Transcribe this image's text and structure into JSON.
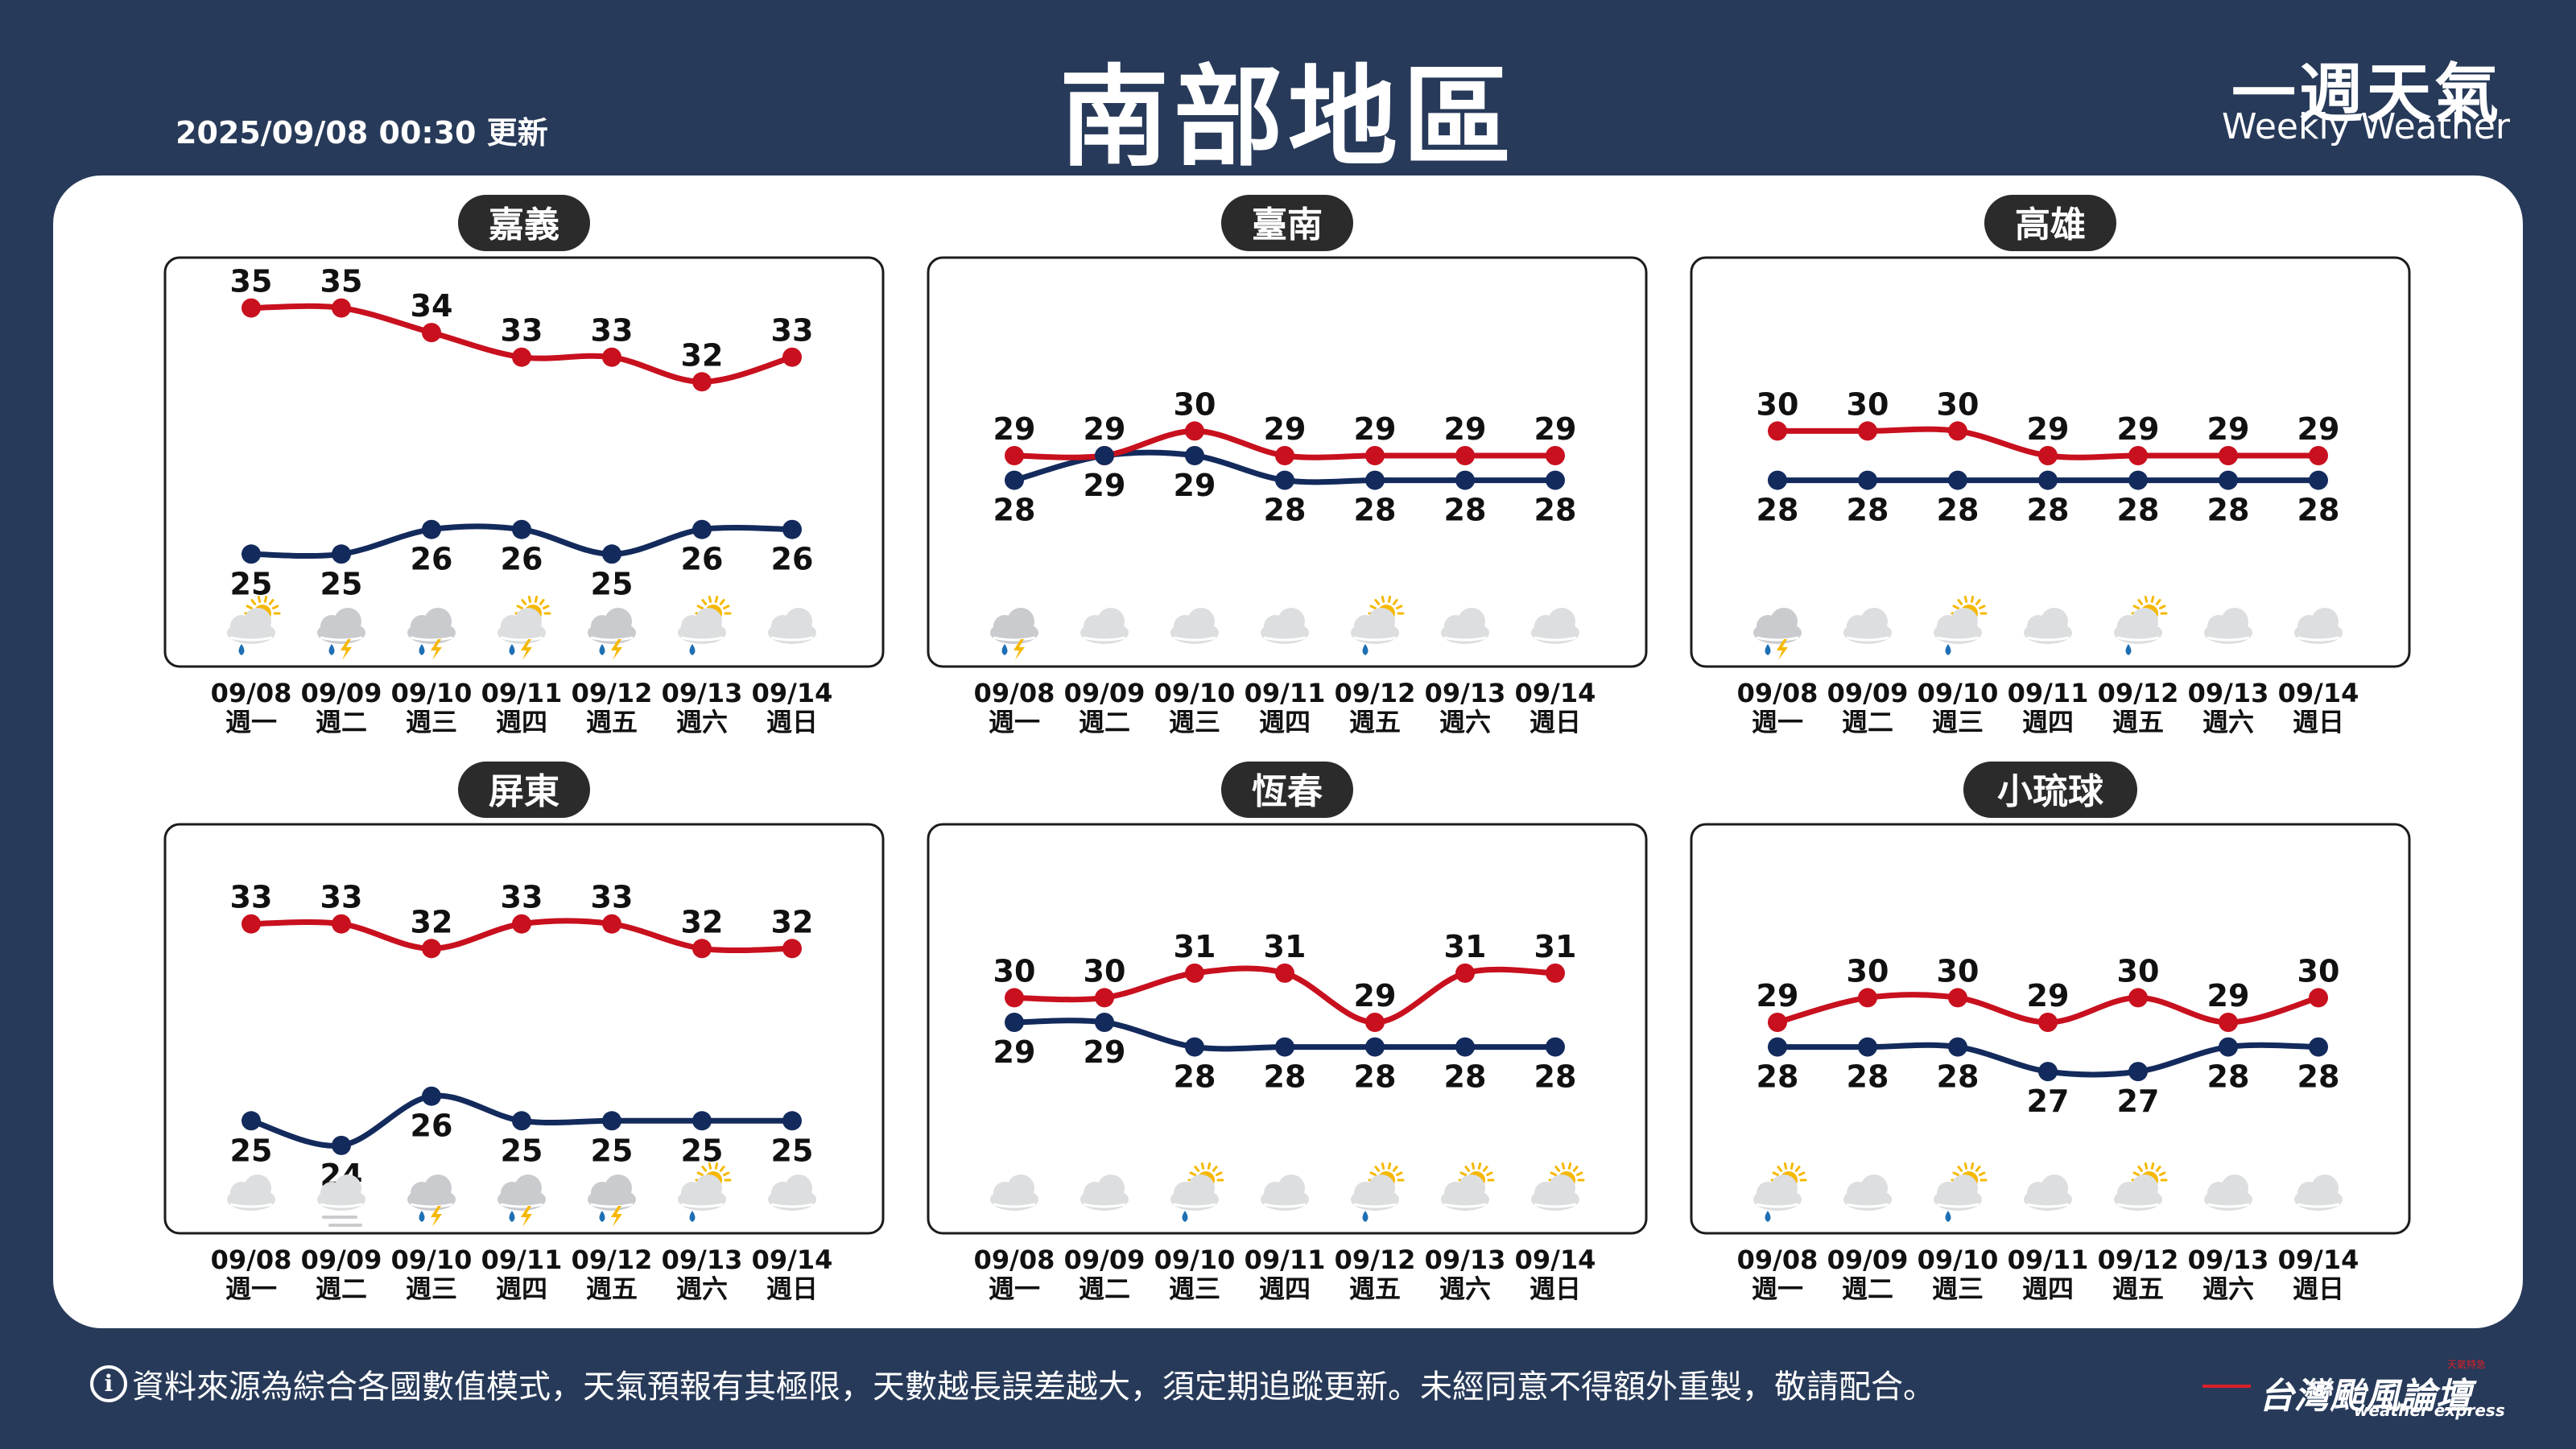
{
  "header": {
    "updated": "2025/09/08 00:30 更新",
    "title": "南部地區",
    "brand_cn": "一週天氣",
    "brand_en": "Weekly Weather"
  },
  "footer": {
    "info_icon": "i",
    "disclaimer": "資料來源為綜合各國數值模式，天氣預報有其極限，天數越長誤差越大，須定期追蹤更新。未經同意不得額外重製，敬請配合。",
    "logo_cn": "台灣颱風論壇",
    "logo_en": "weather express",
    "logo_tag": "天氣特急"
  },
  "colors": {
    "background": "#273a59",
    "high": "#c8101e",
    "low": "#132a5c",
    "label_bg": "#2b2b2b"
  },
  "chart_data": [
    {
      "type": "line",
      "title": "嘉義",
      "dates": [
        "09/08",
        "09/09",
        "09/10",
        "09/11",
        "09/12",
        "09/13",
        "09/14"
      ],
      "weekdays": [
        "週一",
        "週二",
        "週三",
        "週四",
        "週五",
        "週六",
        "週日"
      ],
      "series": [
        {
          "values": [
            35,
            35,
            34,
            33,
            33,
            32,
            33
          ]
        },
        {
          "values": [
            25,
            25,
            26,
            26,
            25,
            26,
            26
          ]
        }
      ],
      "icons": [
        "partly-sunny-rain-icon",
        "thunder-rain-icon",
        "thunder-rain-icon",
        "partly-sunny-thunder-icon",
        "thunder-rain-icon",
        "partly-sunny-rain-icon",
        "cloudy-icon"
      ]
    },
    {
      "type": "line",
      "title": "臺南",
      "dates": [
        "09/08",
        "09/09",
        "09/10",
        "09/11",
        "09/12",
        "09/13",
        "09/14"
      ],
      "weekdays": [
        "週一",
        "週二",
        "週三",
        "週四",
        "週五",
        "週六",
        "週日"
      ],
      "series": [
        {
          "values": [
            29,
            29,
            30,
            29,
            29,
            29,
            29
          ]
        },
        {
          "values": [
            28,
            29,
            29,
            28,
            28,
            28,
            28
          ]
        }
      ],
      "icons": [
        "thunder-rain-icon",
        "cloudy-icon",
        "cloudy-icon",
        "cloudy-icon",
        "partly-sunny-rain-icon",
        "cloudy-icon",
        "cloudy-icon"
      ]
    },
    {
      "type": "line",
      "title": "高雄",
      "dates": [
        "09/08",
        "09/09",
        "09/10",
        "09/11",
        "09/12",
        "09/13",
        "09/14"
      ],
      "weekdays": [
        "週一",
        "週二",
        "週三",
        "週四",
        "週五",
        "週六",
        "週日"
      ],
      "series": [
        {
          "values": [
            30,
            30,
            30,
            29,
            29,
            29,
            29
          ]
        },
        {
          "values": [
            28,
            28,
            28,
            28,
            28,
            28,
            28
          ]
        }
      ],
      "icons": [
        "thunder-rain-icon",
        "cloudy-icon",
        "partly-sunny-rain-icon",
        "cloudy-icon",
        "partly-sunny-rain-icon",
        "cloudy-icon",
        "cloudy-icon"
      ]
    },
    {
      "type": "line",
      "title": "屏東",
      "dates": [
        "09/08",
        "09/09",
        "09/10",
        "09/11",
        "09/12",
        "09/13",
        "09/14"
      ],
      "weekdays": [
        "週一",
        "週二",
        "週三",
        "週四",
        "週五",
        "週六",
        "週日"
      ],
      "series": [
        {
          "values": [
            33,
            33,
            32,
            33,
            33,
            32,
            32
          ]
        },
        {
          "values": [
            25,
            24,
            26,
            25,
            25,
            25,
            25
          ]
        }
      ],
      "icons": [
        "cloudy-icon",
        "fog-cloud-icon",
        "thunder-rain-icon",
        "thunder-rain-icon",
        "thunder-rain-icon",
        "partly-sunny-rain-icon",
        "cloudy-icon"
      ]
    },
    {
      "type": "line",
      "title": "恆春",
      "dates": [
        "09/08",
        "09/09",
        "09/10",
        "09/11",
        "09/12",
        "09/13",
        "09/14"
      ],
      "weekdays": [
        "週一",
        "週二",
        "週三",
        "週四",
        "週五",
        "週六",
        "週日"
      ],
      "series": [
        {
          "values": [
            30,
            30,
            31,
            31,
            29,
            31,
            31
          ]
        },
        {
          "values": [
            29,
            29,
            28,
            28,
            28,
            28,
            28
          ]
        }
      ],
      "icons": [
        "cloudy-icon",
        "cloudy-icon",
        "partly-sunny-rain-icon",
        "cloudy-icon",
        "partly-sunny-rain-icon",
        "partly-sunny-icon",
        "partly-sunny-icon"
      ]
    },
    {
      "type": "line",
      "title": "小琉球",
      "dates": [
        "09/08",
        "09/09",
        "09/10",
        "09/11",
        "09/12",
        "09/13",
        "09/14"
      ],
      "weekdays": [
        "週一",
        "週二",
        "週三",
        "週四",
        "週五",
        "週六",
        "週日"
      ],
      "series": [
        {
          "values": [
            29,
            30,
            30,
            29,
            30,
            29,
            30
          ]
        },
        {
          "values": [
            28,
            28,
            28,
            27,
            27,
            28,
            28
          ]
        }
      ],
      "icons": [
        "partly-sunny-rain-icon",
        "cloudy-icon",
        "partly-sunny-rain-icon",
        "cloudy-icon",
        "partly-sunny-icon",
        "cloudy-icon",
        "cloudy-icon"
      ]
    }
  ]
}
